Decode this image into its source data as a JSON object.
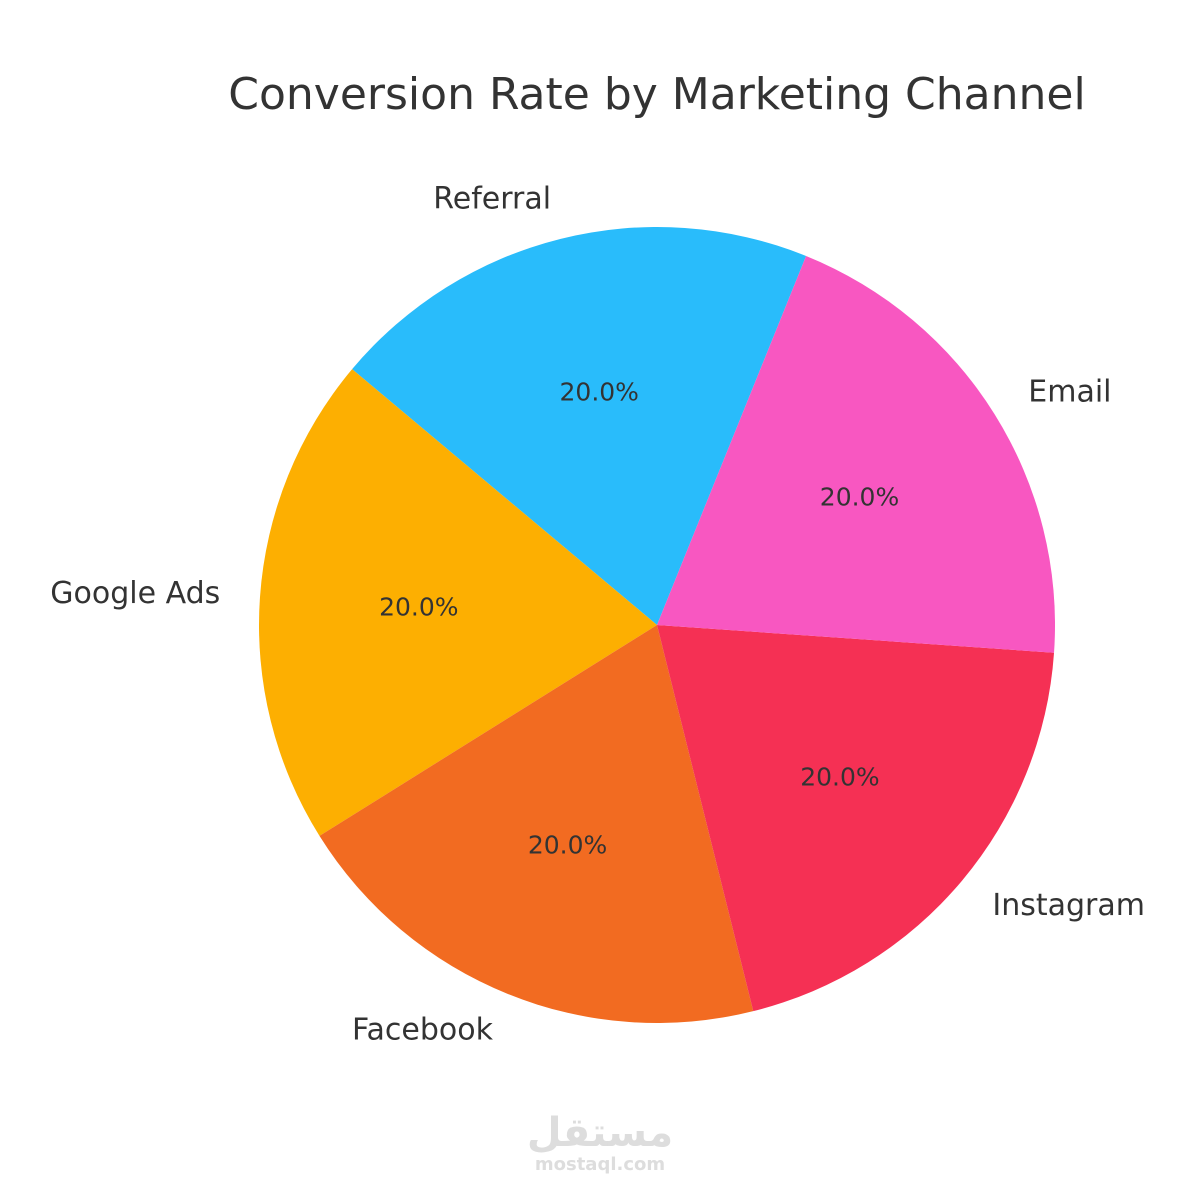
{
  "chart_data": {
    "type": "pie",
    "title": "Conversion Rate by Marketing Channel",
    "categories": [
      "Referral",
      "Google Ads",
      "Facebook",
      "Instagram",
      "Email"
    ],
    "values": [
      20.0,
      20.0,
      20.0,
      20.0,
      20.0
    ],
    "value_labels": [
      "20.0%",
      "20.0%",
      "20.0%",
      "20.0%",
      "20.0%"
    ],
    "colors": [
      "#29bcfb",
      "#fdaf01",
      "#f26b21",
      "#f53054",
      "#f857c1"
    ]
  },
  "watermark": {
    "logo": "مستقل",
    "site": "mostaql.com"
  }
}
